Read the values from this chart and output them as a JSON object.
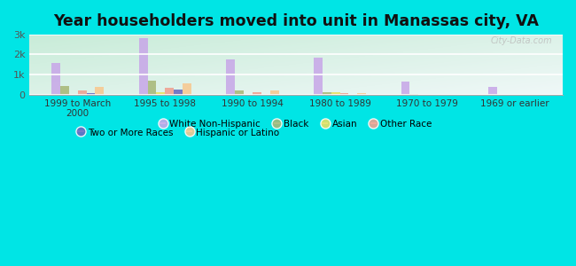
{
  "title": "Year householders moved into unit in Manassas city, VA",
  "categories": [
    "1999 to March\n2000",
    "1995 to 1998",
    "1990 to 1994",
    "1980 to 1989",
    "1970 to 1979",
    "1969 or earlier"
  ],
  "series": {
    "White Non-Hispanic": [
      1600,
      2800,
      1750,
      1850,
      650,
      400
    ],
    "Black": [
      450,
      700,
      200,
      150,
      30,
      20
    ],
    "Asian": [
      0,
      150,
      0,
      150,
      0,
      0
    ],
    "Other Race": [
      200,
      330,
      150,
      80,
      0,
      0
    ],
    "Two or More Races": [
      80,
      250,
      0,
      0,
      0,
      0
    ],
    "Hispanic or Latino": [
      400,
      550,
      220,
      100,
      0,
      0
    ]
  },
  "colors": {
    "White Non-Hispanic": "#c8a8e8",
    "Black": "#a8b878",
    "Asian": "#e8e060",
    "Other Race": "#f0a090",
    "Two or More Races": "#6868c0",
    "Hispanic or Latino": "#f8c890"
  },
  "draw_order": [
    "White Non-Hispanic",
    "Black",
    "Asian",
    "Other Race",
    "Two or More Races",
    "Hispanic or Latino"
  ],
  "legend_row1": [
    "White Non-Hispanic",
    "Black",
    "Asian",
    "Other Race"
  ],
  "legend_row2": [
    "Two or More Races",
    "Hispanic or Latino"
  ],
  "ylim": [
    0,
    3000
  ],
  "yticks": [
    0,
    1000,
    2000,
    3000
  ],
  "ytick_labels": [
    "0",
    "1k",
    "2k",
    "3k"
  ],
  "outer_bg": "#00e5e5",
  "plot_bg_top_right": "#f0f8f8",
  "plot_bg_bottom_left": "#c8ecd8",
  "title_fontsize": 12.5,
  "watermark": "City-Data.com"
}
